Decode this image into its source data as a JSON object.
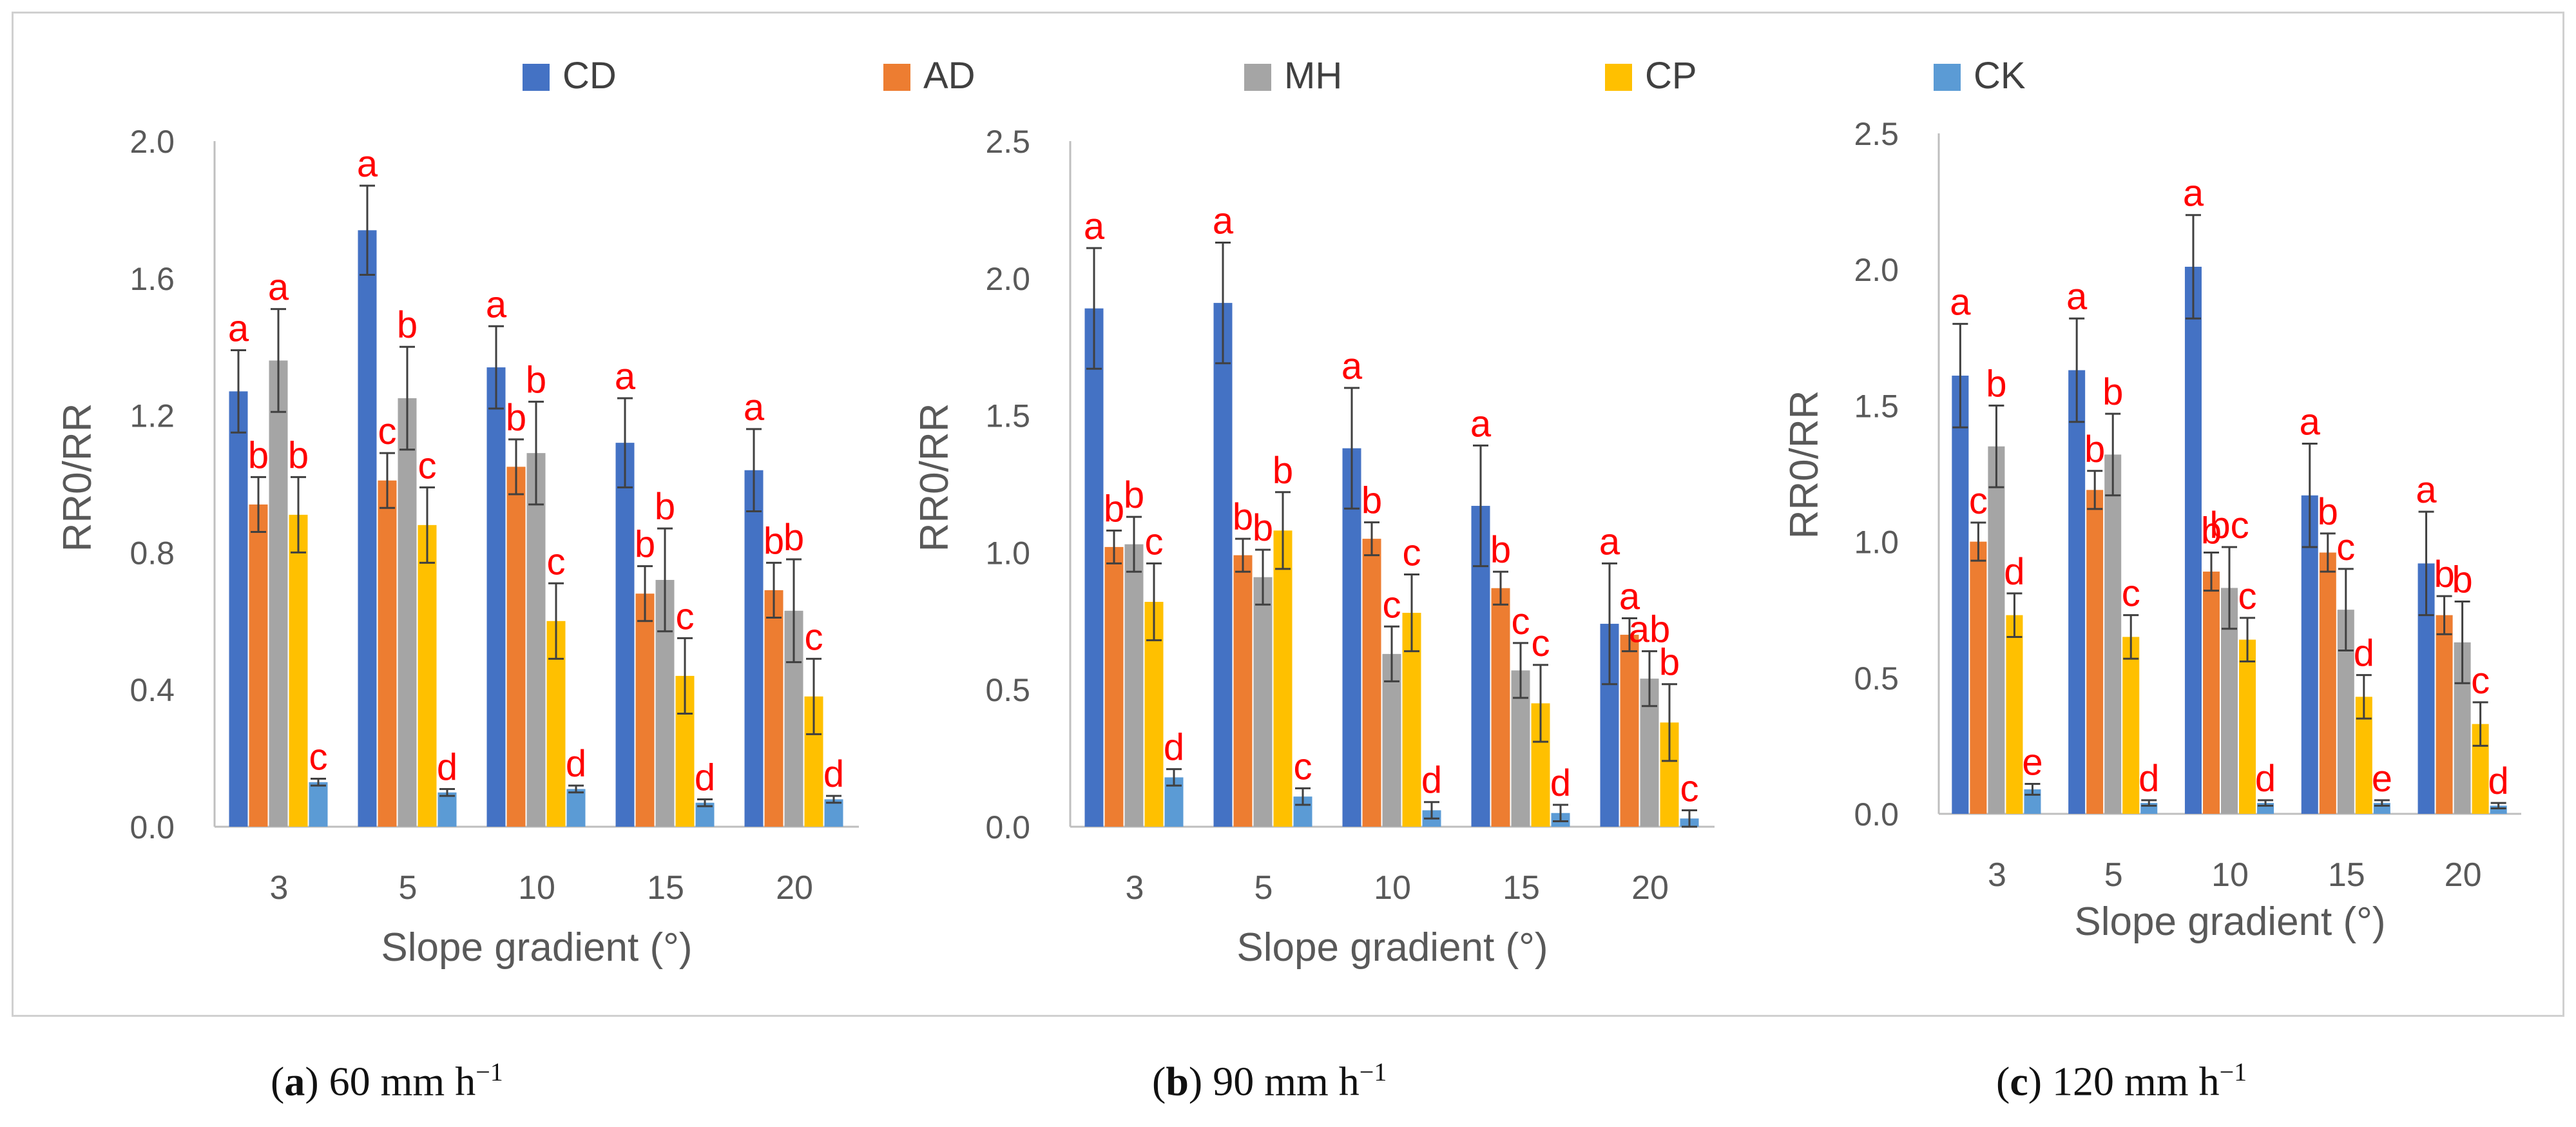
{
  "legend": [
    {
      "name": "CD",
      "color": "#4472c4"
    },
    {
      "name": "AD",
      "color": "#ed7d31"
    },
    {
      "name": "MH",
      "color": "#a5a5a5"
    },
    {
      "name": "CP",
      "color": "#ffc000"
    },
    {
      "name": "CK",
      "color": "#5b9bd5"
    }
  ],
  "letter_color": "#ff0000",
  "captions": [
    {
      "paren_open": "(",
      "letter": "a",
      "rest": ") 60 mm h",
      "sup": "−1"
    },
    {
      "paren_open": "(",
      "letter": "b",
      "rest": ") 90 mm h",
      "sup": "−1"
    },
    {
      "paren_open": "(",
      "letter": "c",
      "rest": ") 120 mm h",
      "sup": "−1"
    }
  ],
  "chart_data": [
    {
      "type": "bar",
      "panel": "a",
      "categories": [
        "3",
        "5",
        "10",
        "15",
        "20"
      ],
      "xlabel": "Slope gradient (°)",
      "ylabel": "RR0/RR",
      "ylim": [
        0,
        2.0
      ],
      "yticks": [
        "0.0",
        "0.4",
        "0.8",
        "1.2",
        "1.6",
        "2.0"
      ],
      "series": [
        {
          "name": "CD",
          "values": [
            1.27,
            1.74,
            1.34,
            1.12,
            1.04
          ],
          "errors": [
            0.12,
            0.13,
            0.12,
            0.13,
            0.12
          ],
          "letters": [
            "a",
            "a",
            "a",
            "a",
            "a"
          ]
        },
        {
          "name": "AD",
          "values": [
            0.94,
            1.01,
            1.05,
            0.68,
            0.69
          ],
          "errors": [
            0.08,
            0.08,
            0.08,
            0.08,
            0.08
          ],
          "letters": [
            "b",
            "c",
            "b",
            "b",
            "b"
          ]
        },
        {
          "name": "MH",
          "values": [
            1.36,
            1.25,
            1.09,
            0.72,
            0.63
          ],
          "errors": [
            0.15,
            0.15,
            0.15,
            0.15,
            0.15
          ],
          "letters": [
            "a",
            "b",
            "b",
            "b",
            "b"
          ]
        },
        {
          "name": "CP",
          "values": [
            0.91,
            0.88,
            0.6,
            0.44,
            0.38
          ],
          "errors": [
            0.11,
            0.11,
            0.11,
            0.11,
            0.11
          ],
          "letters": [
            "b",
            "c",
            "c",
            "c",
            "c"
          ]
        },
        {
          "name": "CK",
          "values": [
            0.13,
            0.1,
            0.11,
            0.07,
            0.08
          ],
          "errors": [
            0.01,
            0.01,
            0.01,
            0.01,
            0.01
          ],
          "letters": [
            "c",
            "d",
            "d",
            "d",
            "d"
          ]
        }
      ]
    },
    {
      "type": "bar",
      "panel": "b",
      "categories": [
        "3",
        "5",
        "10",
        "15",
        "20"
      ],
      "xlabel": "Slope gradient (°)",
      "ylabel": "RR0/RR",
      "ylim": [
        0,
        2.5
      ],
      "yticks": [
        "0.0",
        "0.5",
        "1.0",
        "1.5",
        "2.0",
        "2.5"
      ],
      "series": [
        {
          "name": "CD",
          "values": [
            1.89,
            1.91,
            1.38,
            1.17,
            0.74
          ],
          "errors": [
            0.22,
            0.22,
            0.22,
            0.22,
            0.22
          ],
          "letters": [
            "a",
            "a",
            "a",
            "a",
            "a"
          ]
        },
        {
          "name": "AD",
          "values": [
            1.02,
            0.99,
            1.05,
            0.87,
            0.7
          ],
          "errors": [
            0.06,
            0.06,
            0.06,
            0.06,
            0.06
          ],
          "letters": [
            "b",
            "b",
            "b",
            "b",
            "a"
          ]
        },
        {
          "name": "MH",
          "values": [
            1.03,
            0.91,
            0.63,
            0.57,
            0.54
          ],
          "errors": [
            0.1,
            0.1,
            0.1,
            0.1,
            0.1
          ],
          "letters": [
            "b",
            "b",
            "c",
            "c",
            "ab"
          ]
        },
        {
          "name": "CP",
          "values": [
            0.82,
            1.08,
            0.78,
            0.45,
            0.38
          ],
          "errors": [
            0.14,
            0.14,
            0.14,
            0.14,
            0.14
          ],
          "letters": [
            "c",
            "b",
            "c",
            "c",
            "b"
          ]
        },
        {
          "name": "CK",
          "values": [
            0.18,
            0.11,
            0.06,
            0.05,
            0.03
          ],
          "errors": [
            0.03,
            0.03,
            0.03,
            0.03,
            0.03
          ],
          "letters": [
            "d",
            "c",
            "d",
            "d",
            "c"
          ]
        }
      ]
    },
    {
      "type": "bar",
      "panel": "c",
      "categories": [
        "3",
        "5",
        "10",
        "15",
        "20"
      ],
      "xlabel": "Slope gradient (°)",
      "ylabel": "RR0/RR",
      "ylim": [
        0,
        2.5
      ],
      "yticks": [
        "0.0",
        "0.5",
        "1.0",
        "1.5",
        "2.0",
        "2.5"
      ],
      "series": [
        {
          "name": "CD",
          "values": [
            1.61,
            1.63,
            2.01,
            1.17,
            0.92
          ],
          "errors": [
            0.19,
            0.19,
            0.19,
            0.19,
            0.19
          ],
          "letters": [
            "a",
            "a",
            "a",
            "a",
            "a"
          ]
        },
        {
          "name": "AD",
          "values": [
            1.0,
            1.19,
            0.89,
            0.96,
            0.73
          ],
          "errors": [
            0.07,
            0.07,
            0.07,
            0.07,
            0.07
          ],
          "letters": [
            "c",
            "b",
            "b",
            "b",
            "b"
          ]
        },
        {
          "name": "MH",
          "values": [
            1.35,
            1.32,
            0.83,
            0.75,
            0.63
          ],
          "errors": [
            0.15,
            0.15,
            0.15,
            0.15,
            0.15
          ],
          "letters": [
            "b",
            "b",
            "bc",
            "c",
            "b"
          ]
        },
        {
          "name": "CP",
          "values": [
            0.73,
            0.65,
            0.64,
            0.43,
            0.33
          ],
          "errors": [
            0.08,
            0.08,
            0.08,
            0.08,
            0.08
          ],
          "letters": [
            "d",
            "c",
            "c",
            "d",
            "c"
          ]
        },
        {
          "name": "CK",
          "values": [
            0.09,
            0.04,
            0.04,
            0.04,
            0.03
          ],
          "errors": [
            0.02,
            0.01,
            0.01,
            0.01,
            0.01
          ],
          "letters": [
            "e",
            "d",
            "d",
            "e",
            "d"
          ]
        }
      ]
    }
  ]
}
